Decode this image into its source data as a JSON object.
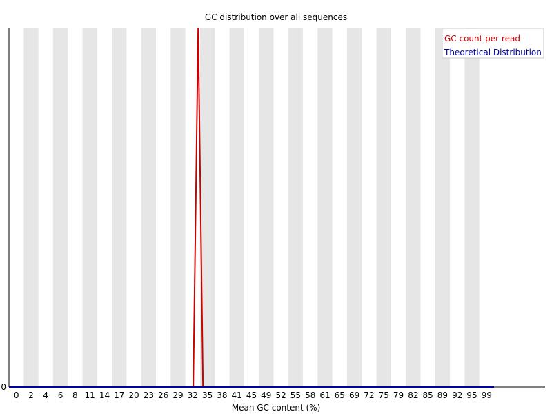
{
  "chart_data": {
    "type": "line",
    "title": "GC distribution over all sequences",
    "xlabel": "Mean GC content (%)",
    "ylabel": "",
    "x_ticks": [
      "0",
      "2",
      "4",
      "6",
      "8",
      "11",
      "14",
      "17",
      "20",
      "23",
      "26",
      "29",
      "32",
      "35",
      "38",
      "41",
      "45",
      "49",
      "52",
      "55",
      "58",
      "61",
      "65",
      "69",
      "72",
      "75",
      "79",
      "82",
      "85",
      "89",
      "92",
      "95",
      "99"
    ],
    "y_ticks": [
      "0"
    ],
    "xlim": [
      0,
      100
    ],
    "ylim": [
      0,
      1
    ],
    "grid": "alternating vertical bands",
    "legend_position": "top-right",
    "series": [
      {
        "name": "GC count per read",
        "color": "#cc0000",
        "x": [
          0,
          38,
          39,
          40,
          100
        ],
        "y": [
          0,
          0,
          1,
          0,
          0
        ]
      },
      {
        "name": "Theoretical Distribution",
        "color": "#0000aa",
        "x": [
          0,
          100
        ],
        "y": [
          0,
          0
        ]
      }
    ]
  }
}
